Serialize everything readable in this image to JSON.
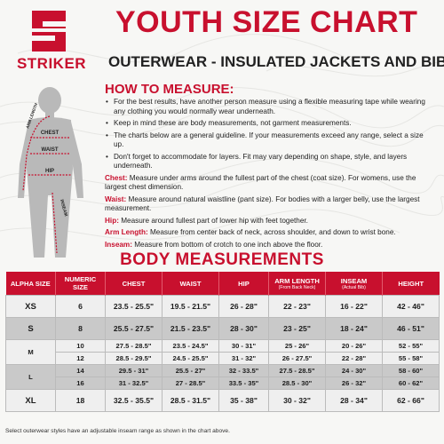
{
  "brand": {
    "name": "STRIKER",
    "accent_color": "#c8102e"
  },
  "title": "YOUTH SIZE CHART",
  "subtitle": "OUTERWEAR - INSULATED JACKETS AND BIBS",
  "figure_labels": {
    "chest": "CHEST",
    "waist": "WAIST",
    "hip": "HIP",
    "inseam": "INSEAM",
    "arm_length": "ARM LENGTH"
  },
  "how_to_measure": {
    "title": "HOW TO MEASURE:",
    "bullets": [
      "For the best results, have another person measure using a flexible measuring tape while wearing any clothing you would normally wear underneath.",
      "Keep in mind these are body measurements, not garment measurements.",
      "The charts below are a general guideline. If your measurements exceed any range, select a size up.",
      "Don't forget to accommodate for layers. Fit may vary depending on shape, style, and layers underneath."
    ],
    "definitions": [
      {
        "term": "Chest:",
        "text": "Measure under arms around the fullest part of the chest (coat size). For womens, use the largest chest dimension."
      },
      {
        "term": "Waist:",
        "text": "Measure around natural waistline (pant size). For bodies with a larger belly, use the largest measurement."
      },
      {
        "term": "Hip:",
        "text": "Measure around fullest part of lower hip with feet together."
      },
      {
        "term": "Arm Length:",
        "text": "Measure from center back of neck, across shoulder, and down to wrist bone."
      },
      {
        "term": "Inseam:",
        "text": "Measure from bottom of crotch to one inch above the floor."
      }
    ]
  },
  "body_measurements": {
    "title": "BODY MEASUREMENTS",
    "headers": {
      "alpha": "ALPHA SIZE",
      "numeric": "NUMERIC SIZE",
      "chest": "CHEST",
      "waist": "WAIST",
      "hip": "HIP",
      "arm": "ARM LENGTH",
      "arm_sub": "(From Back Neck)",
      "inseam": "INSEAM",
      "inseam_sub": "(Actual Bib)",
      "height": "HEIGHT"
    },
    "rows": [
      {
        "alpha": "XS",
        "numeric": "6",
        "chest": "23.5 - 25.5\"",
        "waist": "19.5 - 21.5\"",
        "hip": "26 - 28\"",
        "arm": "22 - 23\"",
        "inseam": "16 - 22\"",
        "height": "42 - 46\""
      },
      {
        "alpha": "S",
        "numeric": "8",
        "chest": "25.5 - 27.5\"",
        "waist": "21.5 - 23.5\"",
        "hip": "28 - 30\"",
        "arm": "23 - 25\"",
        "inseam": "18 - 24\"",
        "height": "46 - 51\""
      },
      {
        "alpha": "M",
        "numeric": "10",
        "chest": "27.5 - 28.5\"",
        "waist": "23.5 - 24.5\"",
        "hip": "30 - 31\"",
        "arm": "25 - 26\"",
        "inseam": "20 - 26\"",
        "height": "52 - 55\""
      },
      {
        "alpha": "",
        "numeric": "12",
        "chest": "28.5 - 29.5\"",
        "waist": "24.5 - 25.5\"",
        "hip": "31 - 32\"",
        "arm": "26 - 27.5\"",
        "inseam": "22 - 28\"",
        "height": "55 - 58\""
      },
      {
        "alpha": "L",
        "numeric": "14",
        "chest": "29.5 - 31\"",
        "waist": "25.5 - 27\"",
        "hip": "32 - 33.5\"",
        "arm": "27.5 - 28.5\"",
        "inseam": "24 - 30\"",
        "height": "58 - 60\""
      },
      {
        "alpha": "",
        "numeric": "16",
        "chest": "31 - 32.5\"",
        "waist": "27 - 28.5\"",
        "hip": "33.5 - 35\"",
        "arm": "28.5 - 30\"",
        "inseam": "26 - 32\"",
        "height": "60 - 62\""
      },
      {
        "alpha": "XL",
        "numeric": "18",
        "chest": "32.5 - 35.5\"",
        "waist": "28.5 - 31.5\"",
        "hip": "35 - 38\"",
        "arm": "30 - 32\"",
        "inseam": "28 - 34\"",
        "height": "62 - 66\""
      }
    ]
  },
  "footnote": "Select outerwear styles have an adjustable inseam range as shown in the chart above."
}
